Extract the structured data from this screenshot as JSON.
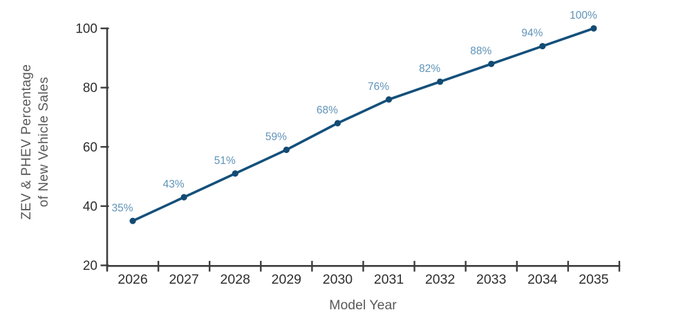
{
  "chart_data": {
    "type": "line",
    "title": "",
    "xlabel": "Model Year",
    "ylabel": "ZEV & PHEV Percentage of New Vehicle Sales",
    "ylabel_lines": [
      "ZEV & PHEV Percentage",
      "of New Vehicle Sales"
    ],
    "categories": [
      "2026",
      "2027",
      "2028",
      "2029",
      "2030",
      "2031",
      "2032",
      "2033",
      "2034",
      "2035"
    ],
    "series": [
      {
        "name": "ZEV & PHEV Percentage of New Vehicle Sales",
        "values": [
          35,
          43,
          51,
          59,
          68,
          76,
          82,
          88,
          94,
          100
        ],
        "data_labels": [
          "35%",
          "43%",
          "51%",
          "59%",
          "68%",
          "76%",
          "82%",
          "88%",
          "94%",
          "100%"
        ]
      }
    ],
    "ylim": [
      20,
      100
    ],
    "yticks": [
      20,
      40,
      60,
      80,
      100
    ],
    "grid": false,
    "legend_position": "none",
    "colors": {
      "line": "#14507b",
      "marker": "#134b73",
      "data_label": "#5f93b8",
      "axis": "#3d3d3d",
      "tick_label": "#2e2e2e",
      "axis_title": "#58595b",
      "background": "#ffffff"
    }
  }
}
